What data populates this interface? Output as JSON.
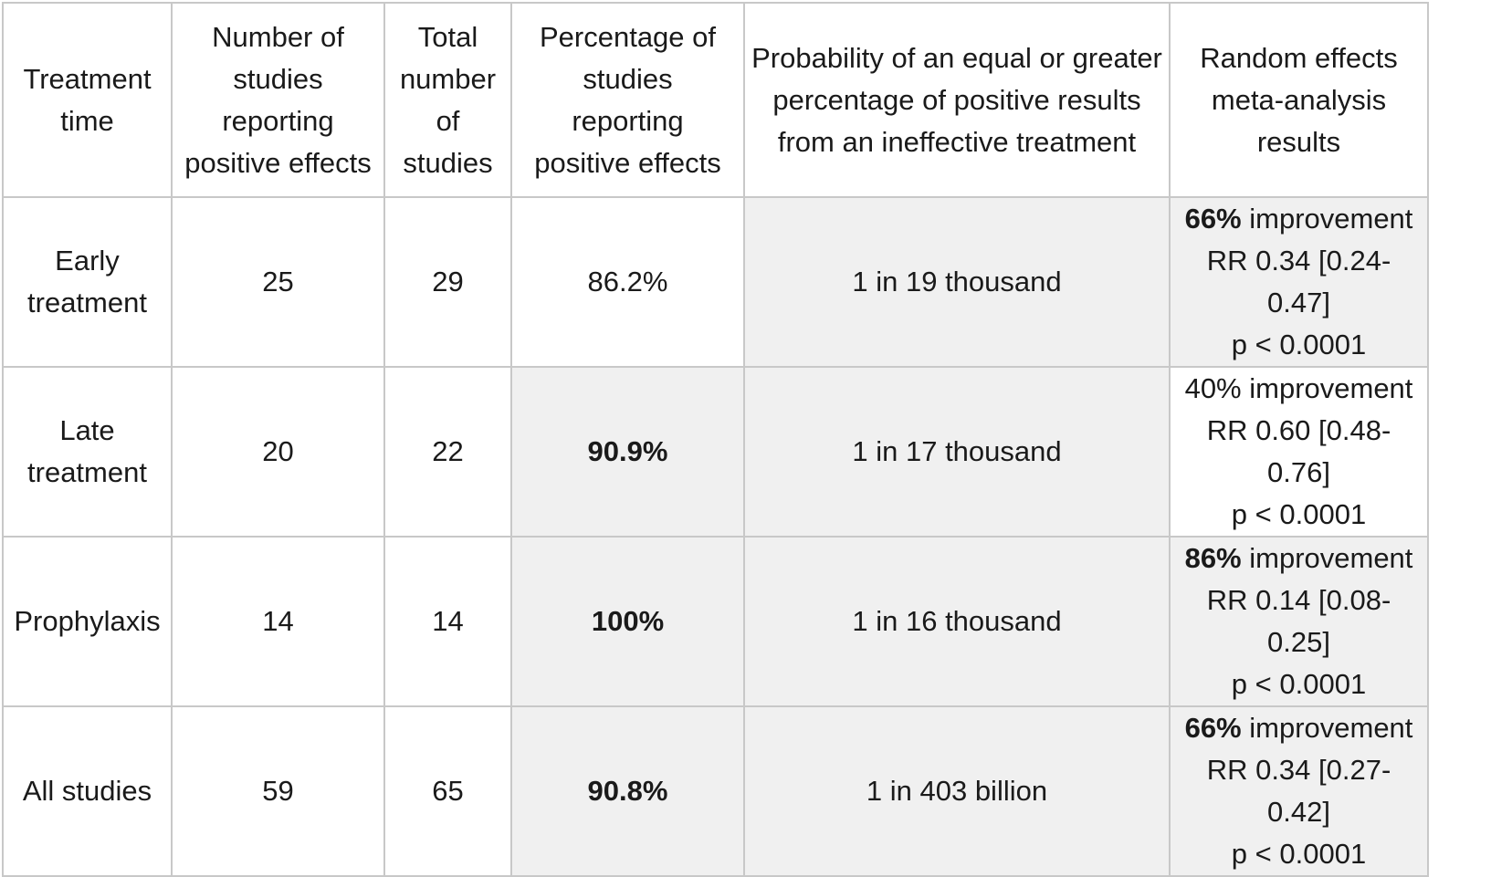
{
  "header": {
    "treatment_time": [
      "Treatment",
      "time"
    ],
    "num_positive": [
      "Number of",
      "studies",
      "reporting",
      "positive effects"
    ],
    "total_studies": [
      "Total",
      "number",
      "of",
      "studies"
    ],
    "pct_positive": [
      "Percentage of",
      "studies",
      "reporting",
      "positive effects"
    ],
    "probability": [
      "Probability of an equal or greater",
      "percentage of positive results",
      "from an ineffective treatment"
    ],
    "meta_analysis": [
      "Random effects",
      "meta-analysis",
      "results"
    ]
  },
  "rows": [
    {
      "treatment_time": [
        "Early",
        "treatment"
      ],
      "num_positive": "25",
      "total_studies": "29",
      "pct_positive": "86.2%",
      "probability": "1 in 19 thousand",
      "meta_pct": "66%",
      "meta_improvement": " improvement",
      "meta_rr": "RR 0.34 [0.24-0.47]",
      "meta_p": "p < 0.0001"
    },
    {
      "treatment_time": [
        "Late",
        "treatment"
      ],
      "num_positive": "20",
      "total_studies": "22",
      "pct_positive": "90.9%",
      "probability": "1 in 17 thousand",
      "meta_pct": "40%",
      "meta_improvement": " improvement",
      "meta_rr": "RR 0.60 [0.48-0.76]",
      "meta_p": "p < 0.0001"
    },
    {
      "treatment_time": [
        "Prophylaxis"
      ],
      "num_positive": "14",
      "total_studies": "14",
      "pct_positive": "100%",
      "probability": "1 in 16 thousand",
      "meta_pct": "86%",
      "meta_improvement": " improvement",
      "meta_rr": "RR 0.14 [0.08-0.25]",
      "meta_p": "p < 0.0001"
    },
    {
      "treatment_time": [
        "All studies"
      ],
      "num_positive": "59",
      "total_studies": "65",
      "pct_positive": "90.8%",
      "probability": "1 in 403 billion",
      "meta_pct": "66%",
      "meta_improvement": " improvement",
      "meta_rr": "RR 0.34 [0.27-0.42]",
      "meta_p": "p < 0.0001"
    }
  ]
}
